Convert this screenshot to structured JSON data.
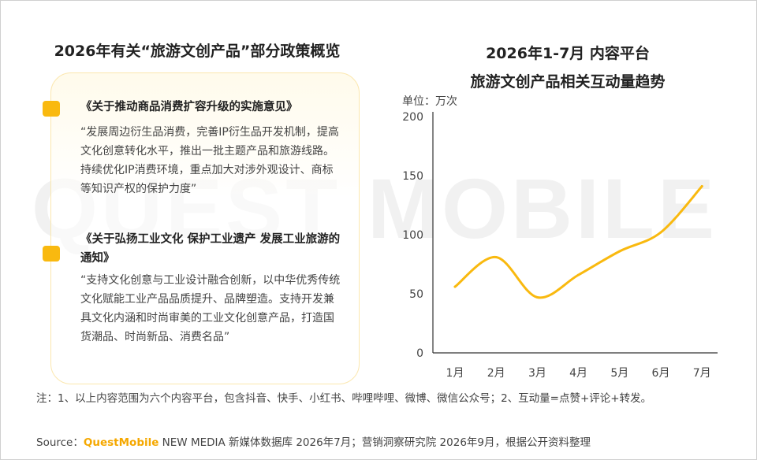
{
  "watermark": "QUEST MOBILE",
  "left_panel": {
    "title": "2026年有关“旅游文创产品”部分政策概览",
    "policies": [
      {
        "title": "《关于推动商品消费扩容升级的实施意见》",
        "body": "“发展周边衍生品消费，完善IP衍生品开发机制，提高文化创意转化水平，推出一批主题产品和旅游线路。持续优化IP消费环境，重点加大对涉外观设计、商标等知识产权的保护力度”"
      },
      {
        "title": "《关于弘扬工业文化 保护工业遗产 发展工业旅游的通知》",
        "body": "“支持文化创意与工业设计融合创新，以中华优秀传统文化赋能工业产品品质提升、品牌塑造。支持开发兼具文化内涵和时尚审美的工业文化创意产品，打造国货潮品、时尚新品、消费名品”"
      }
    ],
    "accent_color": "#f9b90f"
  },
  "chart_data": {
    "type": "line",
    "title_line1": "2026年1-7月 内容平台",
    "title_line2": "旅游文创产品相关互动量趋势",
    "unit_label": "单位：万次",
    "categories": [
      "1月",
      "2月",
      "3月",
      "4月",
      "5月",
      "6月",
      "7月"
    ],
    "values": [
      56,
      81,
      47,
      66,
      86,
      102,
      141
    ],
    "ylim": [
      0,
      200
    ],
    "yticks": [
      "0",
      "50",
      "100",
      "150",
      "200"
    ],
    "line_color": "#f9b90f",
    "grid": false,
    "legend": false,
    "smooth": true
  },
  "footer": {
    "note": "注：1、以上内容范围为六个内容平台，包含抖音、快手、小红书、哔哩哔哩、微博、微信公众号；2、互动量=点赞+评论+转发。",
    "source_prefix": "Source：",
    "source_brand": "QuestMobile",
    "source_rest": " NEW MEDIA 新媒体数据库 2026年7月；营销洞察研究院 2026年9月，根据公开资料整理",
    "brand_color": "#f5a800"
  }
}
